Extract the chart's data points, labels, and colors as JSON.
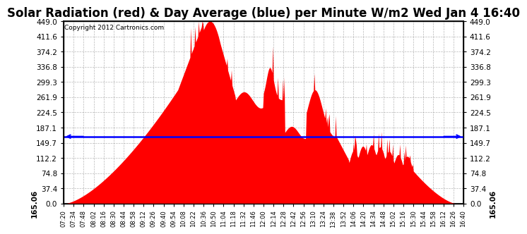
{
  "title": "Solar Radiation (red) & Day Average (blue) per Minute W/m2 Wed Jan 4 16:40",
  "copyright_text": "Copyright 2012 Cartronics.com",
  "avg_value": 165.06,
  "ymin": 0.0,
  "ymax": 449.0,
  "yticks": [
    0.0,
    37.4,
    74.8,
    112.2,
    149.7,
    187.1,
    224.5,
    261.9,
    299.3,
    336.8,
    374.2,
    411.6,
    449.0
  ],
  "xtick_labels": [
    "07:20",
    "07:34",
    "07:48",
    "08:02",
    "08:16",
    "08:30",
    "08:44",
    "08:58",
    "09:12",
    "09:26",
    "09:40",
    "09:54",
    "10:08",
    "10:22",
    "10:36",
    "10:50",
    "11:04",
    "11:18",
    "11:32",
    "11:46",
    "12:00",
    "12:14",
    "12:28",
    "12:42",
    "12:56",
    "13:10",
    "13:24",
    "13:38",
    "13:52",
    "14:06",
    "14:20",
    "14:34",
    "14:48",
    "15:02",
    "15:16",
    "15:30",
    "15:44",
    "15:58",
    "16:12",
    "16:26",
    "16:40"
  ],
  "bar_color": "red",
  "avg_line_color": "blue",
  "background_color": "#ffffff",
  "grid_color": "#999999",
  "title_fontsize": 12,
  "tick_fontsize": 7.5,
  "xtick_fontsize": 6.0,
  "avg_fontsize": 7.5
}
